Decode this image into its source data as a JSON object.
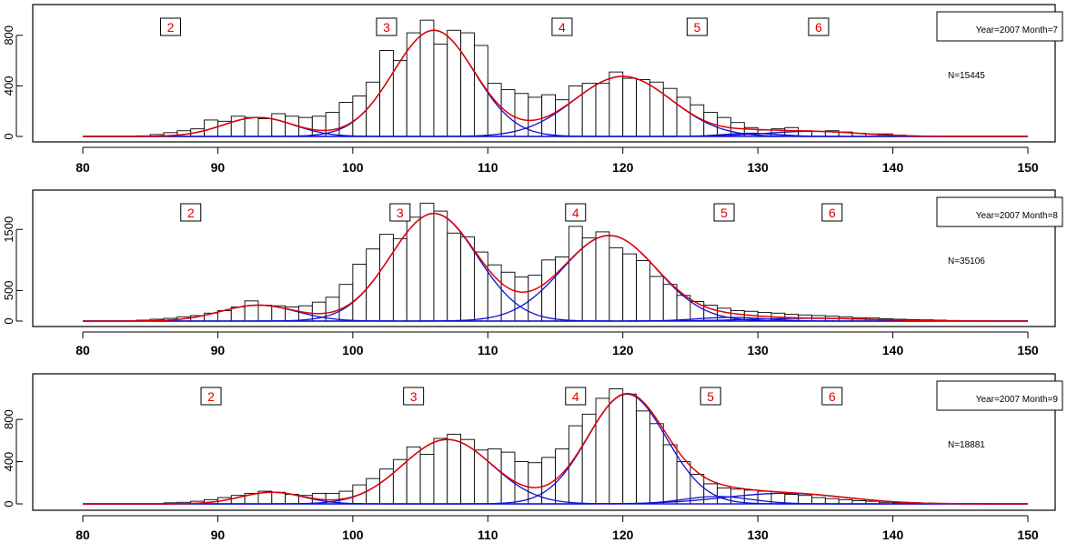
{
  "chart_data": [
    {
      "type": "bar",
      "legend_text": "Year=2007 Month=7",
      "n_text": "N=15445",
      "xlim": [
        80,
        150
      ],
      "xticks": [
        "80",
        "90",
        "100",
        "110",
        "120",
        "130",
        "140",
        "150"
      ],
      "ylim": [
        0,
        950
      ],
      "yticks": [
        "0",
        "400",
        "800"
      ],
      "age_labels": [
        {
          "text": "2",
          "x": 86.5
        },
        {
          "text": "3",
          "x": 102.5
        },
        {
          "text": "4",
          "x": 115.5
        },
        {
          "text": "5",
          "x": 125.5
        },
        {
          "text": "6",
          "x": 134.5
        }
      ],
      "bin_start": 84,
      "bin_width": 1,
      "values": [
        5,
        15,
        30,
        45,
        60,
        130,
        120,
        160,
        150,
        140,
        180,
        160,
        150,
        160,
        190,
        270,
        320,
        430,
        680,
        600,
        820,
        920,
        730,
        840,
        820,
        720,
        420,
        370,
        340,
        310,
        330,
        290,
        400,
        420,
        420,
        510,
        460,
        450,
        430,
        380,
        310,
        250,
        190,
        150,
        110,
        70,
        50,
        60,
        70,
        45,
        40,
        45,
        35,
        25,
        20,
        20,
        10
      ],
      "mixture": [
        {
          "mu": 93,
          "sigma": 2.6,
          "amp": 150
        },
        {
          "mu": 106,
          "sigma": 3.0,
          "amp": 840
        },
        {
          "mu": 120,
          "sigma": 3.6,
          "amp": 475
        },
        {
          "mu": 129.5,
          "sigma": 2.0,
          "amp": 25
        },
        {
          "mu": 134,
          "sigma": 3.5,
          "amp": 40
        }
      ]
    },
    {
      "type": "bar",
      "legend_text": "Year=2007 Month=8",
      "n_text": "N=35106",
      "xlim": [
        80,
        150
      ],
      "xticks": [
        "80",
        "90",
        "100",
        "110",
        "120",
        "130",
        "140",
        "150"
      ],
      "ylim": [
        0,
        1950
      ],
      "yticks": [
        "0",
        "500",
        "1500"
      ],
      "age_labels": [
        {
          "text": "2",
          "x": 88
        },
        {
          "text": "3",
          "x": 103.5
        },
        {
          "text": "4",
          "x": 116.5
        },
        {
          "text": "5",
          "x": 127.5
        },
        {
          "text": "6",
          "x": 135.5
        }
      ],
      "bin_start": 84,
      "bin_width": 1,
      "values": [
        15,
        30,
        45,
        70,
        90,
        130,
        170,
        230,
        330,
        260,
        250,
        230,
        250,
        310,
        390,
        600,
        930,
        1180,
        1420,
        1350,
        1700,
        1930,
        1800,
        1440,
        1380,
        1130,
        920,
        800,
        720,
        750,
        1000,
        1050,
        1550,
        1360,
        1460,
        1200,
        1100,
        990,
        730,
        600,
        420,
        320,
        260,
        210,
        170,
        160,
        140,
        130,
        110,
        100,
        90,
        80,
        70,
        55,
        50,
        40,
        30,
        25,
        20,
        15,
        10
      ],
      "mixture": [
        {
          "mu": 93,
          "sigma": 2.8,
          "amp": 260
        },
        {
          "mu": 106,
          "sigma": 3.2,
          "amp": 1760
        },
        {
          "mu": 119,
          "sigma": 3.5,
          "amp": 1400
        },
        {
          "mu": 128,
          "sigma": 2.5,
          "amp": 60
        },
        {
          "mu": 134,
          "sigma": 4.5,
          "amp": 45
        }
      ]
    },
    {
      "type": "bar",
      "legend_text": "Year=2007 Month=9",
      "n_text": "N=18881",
      "xlim": [
        80,
        150
      ],
      "xticks": [
        "80",
        "90",
        "100",
        "110",
        "120",
        "130",
        "140",
        "150"
      ],
      "ylim": [
        0,
        1120
      ],
      "yticks": [
        "0",
        "400",
        "800"
      ],
      "age_labels": [
        {
          "text": "2",
          "x": 89.5
        },
        {
          "text": "3",
          "x": 104.5
        },
        {
          "text": "4",
          "x": 116.5
        },
        {
          "text": "5",
          "x": 126.5
        },
        {
          "text": "6",
          "x": 135.5
        }
      ],
      "bin_start": 86,
      "bin_width": 1,
      "values": [
        10,
        15,
        25,
        40,
        60,
        80,
        100,
        120,
        110,
        90,
        80,
        100,
        100,
        120,
        180,
        240,
        330,
        420,
        540,
        470,
        620,
        660,
        610,
        510,
        520,
        490,
        400,
        390,
        440,
        520,
        740,
        850,
        1000,
        1090,
        1040,
        880,
        760,
        560,
        400,
        280,
        190,
        150,
        140,
        130,
        120,
        100,
        90,
        80,
        60,
        50,
        40,
        30,
        25,
        15,
        10,
        10,
        8,
        5,
        5
      ],
      "mixture": [
        {
          "mu": 94,
          "sigma": 2.3,
          "amp": 110
        },
        {
          "mu": 107,
          "sigma": 3.3,
          "amp": 610
        },
        {
          "mu": 120.3,
          "sigma": 2.9,
          "amp": 1040
        },
        {
          "mu": 127,
          "sigma": 2.5,
          "amp": 70
        },
        {
          "mu": 132,
          "sigma": 4.5,
          "amp": 100
        }
      ]
    }
  ]
}
